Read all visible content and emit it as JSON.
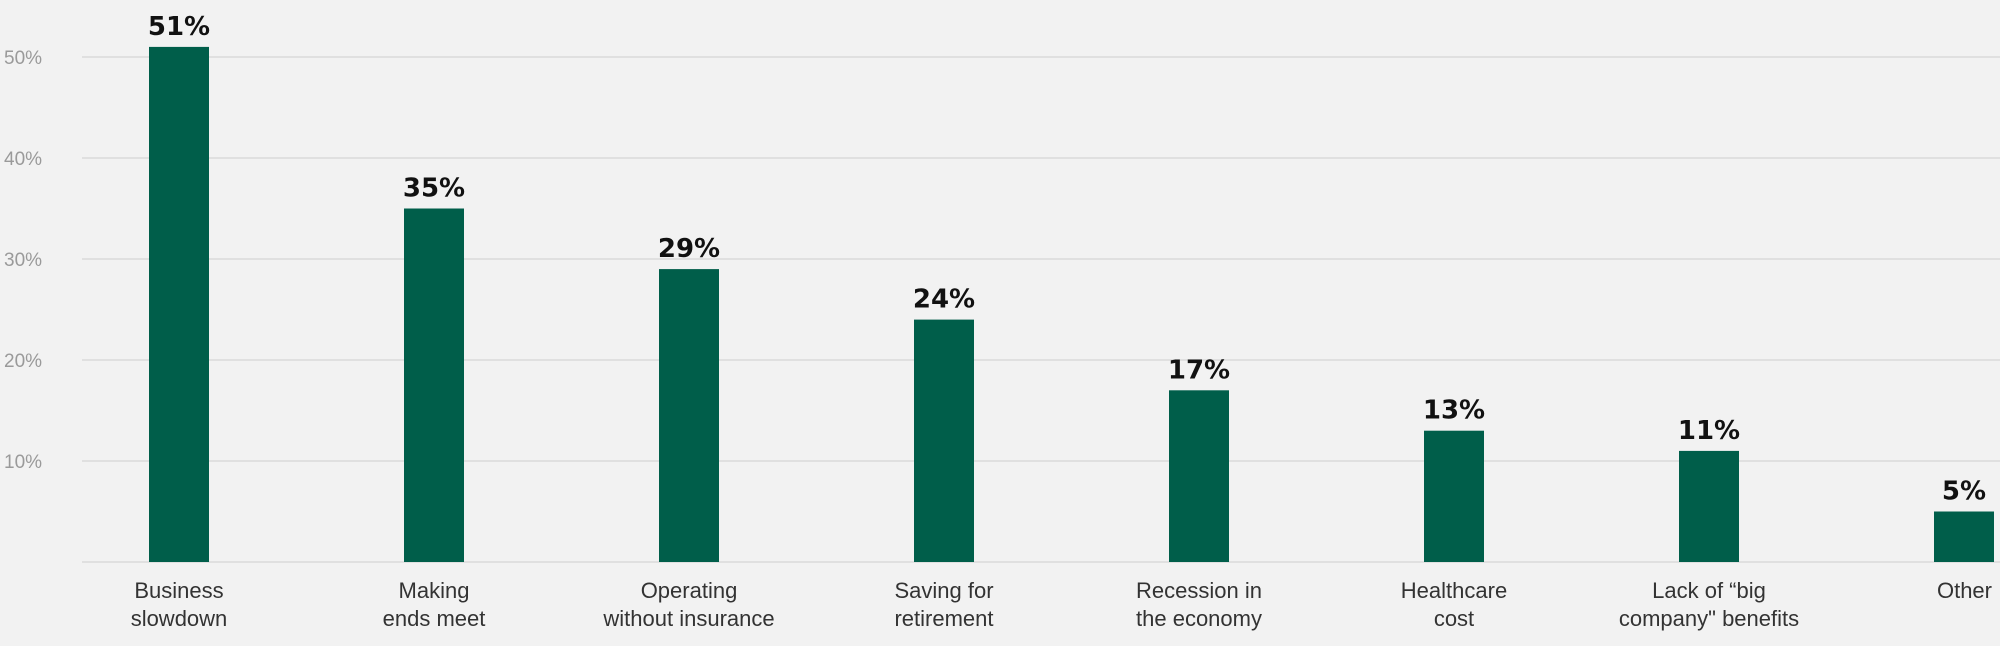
{
  "chart_data": {
    "type": "bar",
    "title": "",
    "xlabel": "",
    "ylabel": "",
    "ylim": [
      0,
      50
    ],
    "yticks": [
      10,
      20,
      30,
      40,
      50
    ],
    "ytick_labels": [
      "10%",
      "20%",
      "30%",
      "40%",
      "50%"
    ],
    "grid": true,
    "legend": "none",
    "bar_color": "#005e4a",
    "categories": [
      [
        "Business",
        "slowdown"
      ],
      [
        "Making",
        "ends meet"
      ],
      [
        "Operating",
        "without insurance"
      ],
      [
        "Saving for",
        "retirement"
      ],
      [
        "Recession in",
        "the economy"
      ],
      [
        "Healthcare",
        "cost"
      ],
      [
        "Lack of “big",
        "company\" benefits"
      ],
      [
        "Other"
      ]
    ],
    "values": [
      51,
      35,
      29,
      24,
      17,
      13,
      11,
      5
    ],
    "value_labels": [
      "51%",
      "35%",
      "29%",
      "24%",
      "17%",
      "13%",
      "11%",
      "5%"
    ]
  }
}
